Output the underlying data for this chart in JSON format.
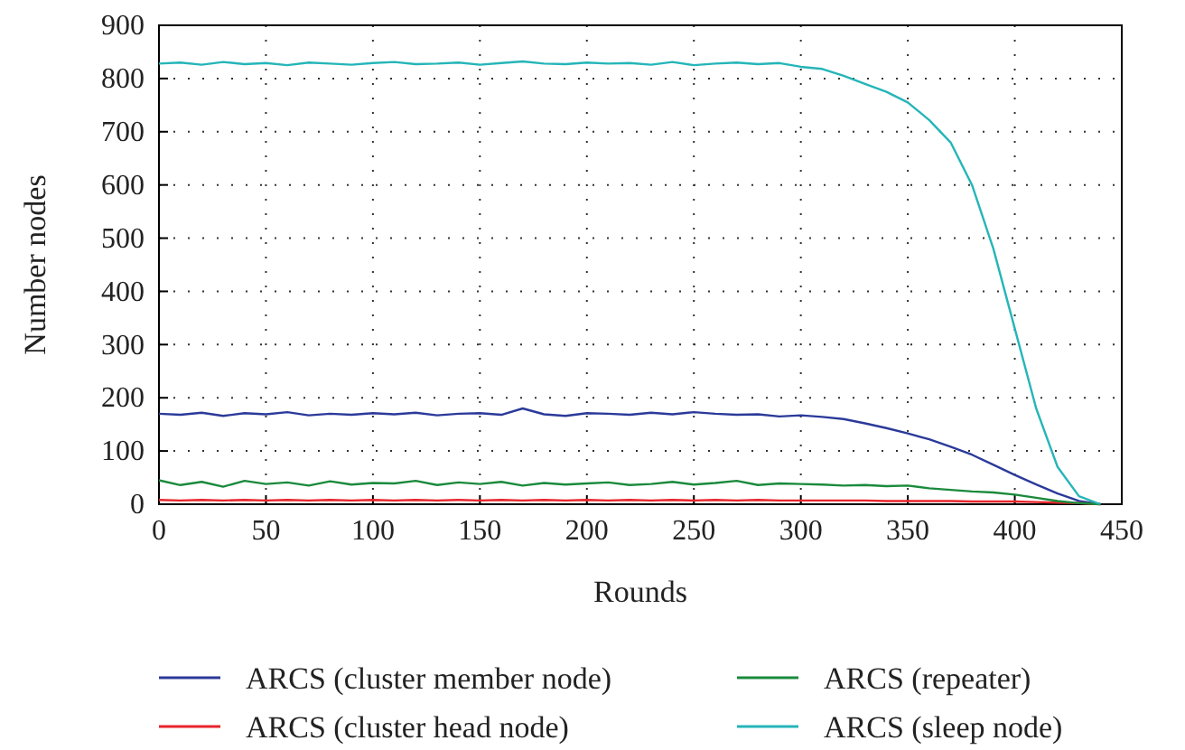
{
  "chart_data": {
    "type": "line",
    "xlabel": "Rounds",
    "ylabel": "Number nodes",
    "xlim": [
      0,
      450
    ],
    "ylim": [
      0,
      900
    ],
    "xticks": [
      0,
      50,
      100,
      150,
      200,
      250,
      300,
      350,
      400,
      450
    ],
    "yticks": [
      0,
      100,
      200,
      300,
      400,
      500,
      600,
      700,
      800,
      900
    ],
    "grid": true,
    "legend": "bottom",
    "line_style": "solid",
    "marker": "none",
    "x": [
      0,
      10,
      20,
      30,
      40,
      50,
      60,
      70,
      80,
      90,
      100,
      110,
      120,
      130,
      140,
      150,
      160,
      170,
      180,
      190,
      200,
      210,
      220,
      230,
      240,
      250,
      260,
      270,
      280,
      290,
      300,
      310,
      320,
      330,
      340,
      350,
      360,
      370,
      380,
      390,
      400,
      410,
      420,
      430,
      440
    ],
    "series": [
      {
        "name": "ARCS (cluster member node)",
        "color": "#2b3a9a",
        "values": [
          170,
          168,
          172,
          166,
          171,
          169,
          173,
          167,
          170,
          168,
          171,
          169,
          172,
          167,
          170,
          171,
          168,
          180,
          169,
          166,
          171,
          170,
          168,
          172,
          169,
          173,
          170,
          168,
          169,
          165,
          167,
          164,
          160,
          152,
          143,
          133,
          122,
          108,
          93,
          74,
          55,
          37,
          20,
          6,
          0
        ]
      },
      {
        "name": "ARCS (cluster head node)",
        "color": "#e8242b",
        "values": [
          8,
          7,
          8,
          7,
          8,
          7,
          8,
          7,
          8,
          7,
          8,
          7,
          8,
          7,
          8,
          7,
          8,
          7,
          8,
          7,
          8,
          7,
          8,
          7,
          8,
          7,
          8,
          7,
          8,
          7,
          7,
          7,
          7,
          7,
          6,
          6,
          6,
          6,
          5,
          5,
          5,
          4,
          3,
          2,
          0
        ]
      },
      {
        "name": "ARCS (repeater)",
        "color": "#1a8a3c",
        "values": [
          45,
          36,
          42,
          33,
          44,
          38,
          41,
          35,
          43,
          37,
          40,
          39,
          44,
          36,
          41,
          38,
          42,
          35,
          40,
          37,
          39,
          41,
          36,
          38,
          42,
          37,
          40,
          44,
          36,
          39,
          38,
          37,
          35,
          36,
          34,
          35,
          30,
          27,
          24,
          22,
          18,
          12,
          6,
          2,
          0
        ]
      },
      {
        "name": "ARCS (sleep node)",
        "color": "#25b5b8",
        "values": [
          828,
          830,
          826,
          831,
          827,
          829,
          825,
          830,
          828,
          826,
          829,
          831,
          827,
          828,
          830,
          826,
          829,
          832,
          828,
          827,
          830,
          828,
          829,
          826,
          831,
          825,
          828,
          830,
          827,
          829,
          822,
          818,
          805,
          790,
          775,
          755,
          722,
          680,
          600,
          480,
          330,
          180,
          70,
          15,
          0
        ]
      }
    ]
  }
}
